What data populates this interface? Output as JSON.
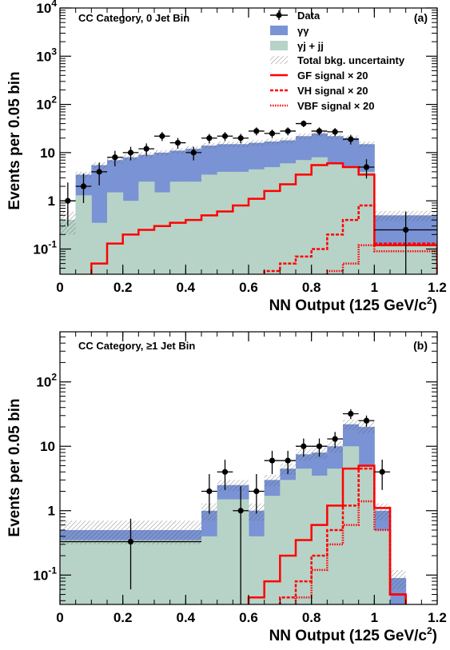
{
  "colors": {
    "gg": "#7a93d4",
    "gj": "#b7d3c7",
    "signal": "#ff0000",
    "data": "#000000"
  },
  "chart_data": [
    {
      "type": "histogram-log",
      "category_label": "CC Category, 0 Jet Bin",
      "panel_label": "(a)",
      "xlabel": "NN Output (125 GeV/c",
      "xlabel_sup": "2",
      "xlabel_end": ")",
      "ylabel": "Events per 0.05 bin",
      "xlim": [
        0,
        1.2
      ],
      "ylim": [
        0.03,
        10000
      ],
      "log_y": true,
      "x_ticks": [
        "0",
        "0.2",
        "0.4",
        "0.6",
        "0.8",
        "1",
        "1.2"
      ],
      "y_ticks": [
        {
          "base": "10",
          "exp": "-1",
          "v": 0.1
        },
        {
          "base": "1",
          "exp": "",
          "v": 1
        },
        {
          "base": "10",
          "exp": "",
          "v": 10
        },
        {
          "base": "10",
          "exp": "2",
          "v": 100
        },
        {
          "base": "10",
          "exp": "3",
          "v": 1000
        },
        {
          "base": "10",
          "exp": "4",
          "v": 10000
        }
      ],
      "legend": {
        "position": "top-right",
        "entries": [
          "Data",
          "γγ",
          "γj + jj",
          "Total bkg. uncertainty",
          "GF signal × 20",
          "VH signal × 20",
          "VBF signal × 20"
        ]
      },
      "bins": [
        0,
        0.05,
        0.1,
        0.15,
        0.2,
        0.25,
        0.3,
        0.35,
        0.4,
        0.45,
        0.5,
        0.55,
        0.6,
        0.65,
        0.7,
        0.75,
        0.8,
        0.85,
        0.9,
        0.95,
        1.0,
        1.2
      ],
      "total_bkg": [
        0.4,
        3.5,
        5.5,
        7,
        8,
        9,
        10,
        11,
        12,
        14,
        15,
        15,
        16,
        17,
        18,
        22,
        25,
        22,
        20,
        15,
        0.5
      ],
      "gj_bkg": [
        0.4,
        1.3,
        0.35,
        1.5,
        1.0,
        2.5,
        1.5,
        2.5,
        2.5,
        3.5,
        4.0,
        4.0,
        4.5,
        5.0,
        6.0,
        7.0,
        8.0,
        6.0,
        5.0,
        4.0,
        0.12
      ],
      "bkg_unc": [
        0.2,
        0.5,
        0.8,
        1.0,
        1.1,
        1.2,
        1.3,
        1.5,
        1.6,
        1.9,
        2.0,
        2.0,
        2.2,
        2.3,
        2.5,
        3.0,
        3.4,
        3.0,
        2.7,
        2.0,
        0.12
      ],
      "gf_signal": [
        0.0,
        0.0,
        0.05,
        0.13,
        0.2,
        0.25,
        0.3,
        0.35,
        0.4,
        0.5,
        0.6,
        0.8,
        1.1,
        1.6,
        2.2,
        3.5,
        5.5,
        6.0,
        5.0,
        3.5,
        0.12
      ],
      "vh_signal": [
        0.0,
        0.0,
        0.0,
        0.0,
        0.0,
        0.0,
        0.0,
        0.0,
        0.0,
        0.0,
        0.0,
        0.0,
        0.0,
        0.035,
        0.05,
        0.07,
        0.1,
        0.2,
        0.4,
        0.8,
        0.13
      ],
      "vbf_signal": [
        0.0,
        0.0,
        0.0,
        0.0,
        0.0,
        0.0,
        0.0,
        0.0,
        0.0,
        0.0,
        0.0,
        0.0,
        0.0,
        0.0,
        0.0,
        0.0,
        0.0,
        0.035,
        0.05,
        0.12,
        0.09
      ],
      "data_points": [
        {
          "x": 0.025,
          "y": 1,
          "ylo": 0.3,
          "yhi": 2.4
        },
        {
          "x": 0.075,
          "y": 2,
          "ylo": 0.9,
          "yhi": 3.7
        },
        {
          "x": 0.125,
          "y": 4,
          "ylo": 2.1,
          "yhi": 6.2
        },
        {
          "x": 0.175,
          "y": 8,
          "ylo": 5.2,
          "yhi": 10.9
        },
        {
          "x": 0.225,
          "y": 10,
          "ylo": 6.9,
          "yhi": 13.2
        },
        {
          "x": 0.275,
          "y": 12,
          "ylo": 8.6,
          "yhi": 15.5
        },
        {
          "x": 0.325,
          "y": 22,
          "ylo": 17.4,
          "yhi": 26.7
        },
        {
          "x": 0.375,
          "y": 16,
          "ylo": 12.1,
          "yhi": 20.1
        },
        {
          "x": 0.425,
          "y": 10,
          "ylo": 6.9,
          "yhi": 13.2
        },
        {
          "x": 0.475,
          "y": 20,
          "ylo": 15.6,
          "yhi": 24.5
        },
        {
          "x": 0.525,
          "y": 22,
          "ylo": 17.4,
          "yhi": 26.7
        },
        {
          "x": 0.575,
          "y": 20,
          "ylo": 15.6,
          "yhi": 24.5
        },
        {
          "x": 0.625,
          "y": 28,
          "ylo": 22.8,
          "yhi": 33.3
        },
        {
          "x": 0.675,
          "y": 25,
          "ylo": 20.1,
          "yhi": 30.0
        },
        {
          "x": 0.725,
          "y": 28,
          "ylo": 22.8,
          "yhi": 33.3
        },
        {
          "x": 0.775,
          "y": 40,
          "ylo": 33.8,
          "yhi": 46.4
        },
        {
          "x": 0.825,
          "y": 28,
          "ylo": 22.8,
          "yhi": 33.3
        },
        {
          "x": 0.875,
          "y": 27,
          "ylo": 21.9,
          "yhi": 32.2
        },
        {
          "x": 0.925,
          "y": 19,
          "ylo": 14.7,
          "yhi": 23.4
        },
        {
          "x": 0.975,
          "y": 5,
          "ylo": 2.9,
          "yhi": 7.3
        },
        {
          "x": 1.1,
          "y": 0.25,
          "ylo": 0.03,
          "yhi": 0.6,
          "xerr": 0.1
        }
      ]
    },
    {
      "type": "histogram-log",
      "category_label": "CC Category, ≥1 Jet Bin",
      "panel_label": "(b)",
      "xlabel": "NN Output (125 GeV/c",
      "xlabel_sup": "2",
      "xlabel_end": ")",
      "ylabel": "Events per 0.05 bin",
      "xlim": [
        0,
        1.2
      ],
      "ylim": [
        0.035,
        600
      ],
      "log_y": true,
      "x_ticks": [
        "0",
        "0.2",
        "0.4",
        "0.6",
        "0.8",
        "1",
        "1.2"
      ],
      "y_ticks": [
        {
          "base": "10",
          "exp": "-1",
          "v": 0.1
        },
        {
          "base": "1",
          "exp": "",
          "v": 1
        },
        {
          "base": "10",
          "exp": "",
          "v": 10
        },
        {
          "base": "10",
          "exp": "2",
          "v": 100
        }
      ],
      "bins": [
        0,
        0.45,
        0.5,
        0.55,
        0.6,
        0.65,
        0.7,
        0.75,
        0.8,
        0.85,
        0.9,
        0.95,
        1.0,
        1.05,
        1.1,
        1.2
      ],
      "total_bkg": [
        0.5,
        1.0,
        2.5,
        2.5,
        1.0,
        3.0,
        4.5,
        7.5,
        8.0,
        10.0,
        22.0,
        20.0,
        1.0,
        0.09,
        0.0
      ],
      "gj_bkg": [
        0.35,
        0.4,
        1.5,
        1.5,
        0.4,
        1.7,
        3.0,
        4.5,
        3.5,
        4.5,
        10.0,
        5.0,
        0.5,
        0.0,
        0.0
      ],
      "bkg_unc": [
        0.2,
        0.3,
        0.5,
        0.5,
        0.3,
        0.6,
        0.9,
        1.5,
        1.6,
        2.0,
        4.0,
        4.0,
        0.3,
        0.03,
        0.0
      ],
      "gf_signal": [
        0.0,
        0.0,
        0.0,
        0.0,
        0.045,
        0.08,
        0.2,
        0.35,
        0.6,
        1.2,
        4.5,
        5.0,
        1.1,
        0.05,
        0.0
      ],
      "vh_signal": [
        0.0,
        0.0,
        0.0,
        0.0,
        0.0,
        0.0,
        0.045,
        0.08,
        0.2,
        0.5,
        1.2,
        4.5,
        1.1,
        0.05,
        0.0
      ],
      "vbf_signal": [
        0.0,
        0.0,
        0.0,
        0.0,
        0.0,
        0.0,
        0.0,
        0.045,
        0.12,
        0.3,
        0.6,
        1.4,
        0.5,
        0.05,
        0.0
      ],
      "data_points": [
        {
          "x": 0.225,
          "y": 0.33,
          "ylo": 0.06,
          "yhi": 0.75,
          "xerr": 0.225
        },
        {
          "x": 0.475,
          "y": 2,
          "ylo": 0.9,
          "yhi": 3.7
        },
        {
          "x": 0.525,
          "y": 4,
          "ylo": 2.1,
          "yhi": 6.2
        },
        {
          "x": 0.575,
          "y": 1,
          "ylo": 0.03,
          "yhi": 2.4
        },
        {
          "x": 0.625,
          "y": 2,
          "ylo": 0.9,
          "yhi": 3.7
        },
        {
          "x": 0.675,
          "y": 6,
          "ylo": 3.7,
          "yhi": 8.5
        },
        {
          "x": 0.725,
          "y": 6,
          "ylo": 3.7,
          "yhi": 8.5
        },
        {
          "x": 0.775,
          "y": 10,
          "ylo": 6.9,
          "yhi": 13.2
        },
        {
          "x": 0.825,
          "y": 10,
          "ylo": 6.9,
          "yhi": 13.2
        },
        {
          "x": 0.875,
          "y": 13,
          "ylo": 9.4,
          "yhi": 16.7
        },
        {
          "x": 0.925,
          "y": 32,
          "ylo": 26.4,
          "yhi": 37.7
        },
        {
          "x": 0.975,
          "y": 25,
          "ylo": 20.1,
          "yhi": 30.0
        },
        {
          "x": 1.025,
          "y": 4,
          "ylo": 2.1,
          "yhi": 6.2
        }
      ]
    }
  ]
}
